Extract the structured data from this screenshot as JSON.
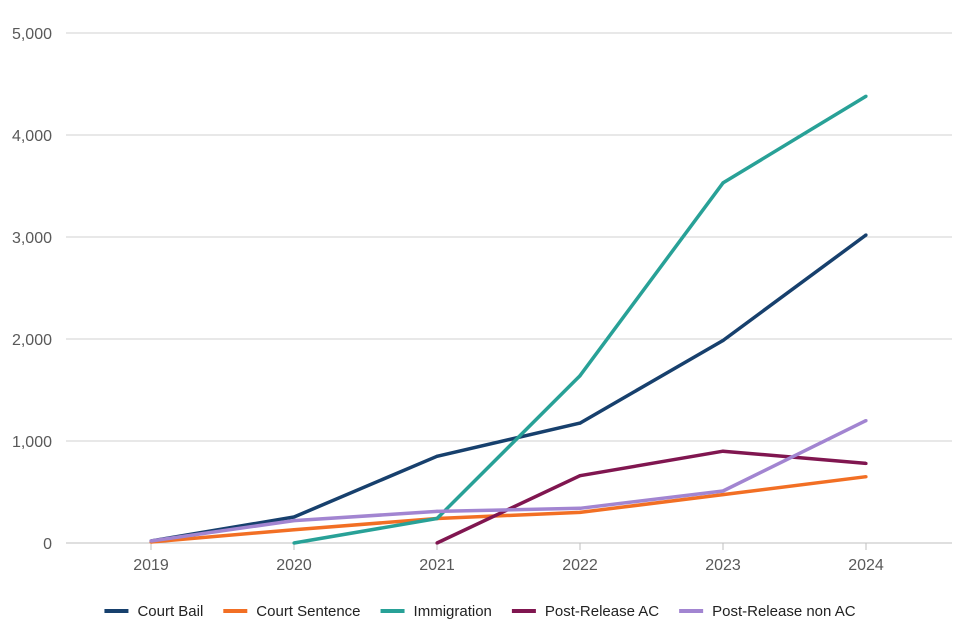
{
  "chart_data": {
    "type": "line",
    "title": "",
    "xlabel": "",
    "ylabel": "",
    "categories": [
      "2019",
      "2020",
      "2021",
      "2022",
      "2023",
      "2024"
    ],
    "ylim": [
      0,
      5000
    ],
    "yticks": [
      0,
      1000,
      2000,
      3000,
      4000,
      5000
    ],
    "ytick_labels": [
      "0",
      "1,000",
      "2,000",
      "3,000",
      "4,000",
      "5,000"
    ],
    "grid": true,
    "legend_position": "bottom",
    "series": [
      {
        "name": "Court Bail",
        "color": "#17406d",
        "values": [
          20,
          255,
          850,
          1175,
          1985,
          3020
        ]
      },
      {
        "name": "Court Sentence",
        "color": "#f26f24",
        "values": [
          10,
          130,
          240,
          300,
          475,
          650
        ]
      },
      {
        "name": "Immigration",
        "color": "#28a197",
        "values": [
          null,
          0,
          240,
          1640,
          3530,
          4380
        ]
      },
      {
        "name": "Post-Release AC",
        "color": "#801650",
        "values": [
          null,
          null,
          0,
          660,
          900,
          780
        ]
      },
      {
        "name": "Post-Release non AC",
        "color": "#a285d1",
        "values": [
          20,
          220,
          310,
          340,
          510,
          1200
        ]
      }
    ]
  }
}
